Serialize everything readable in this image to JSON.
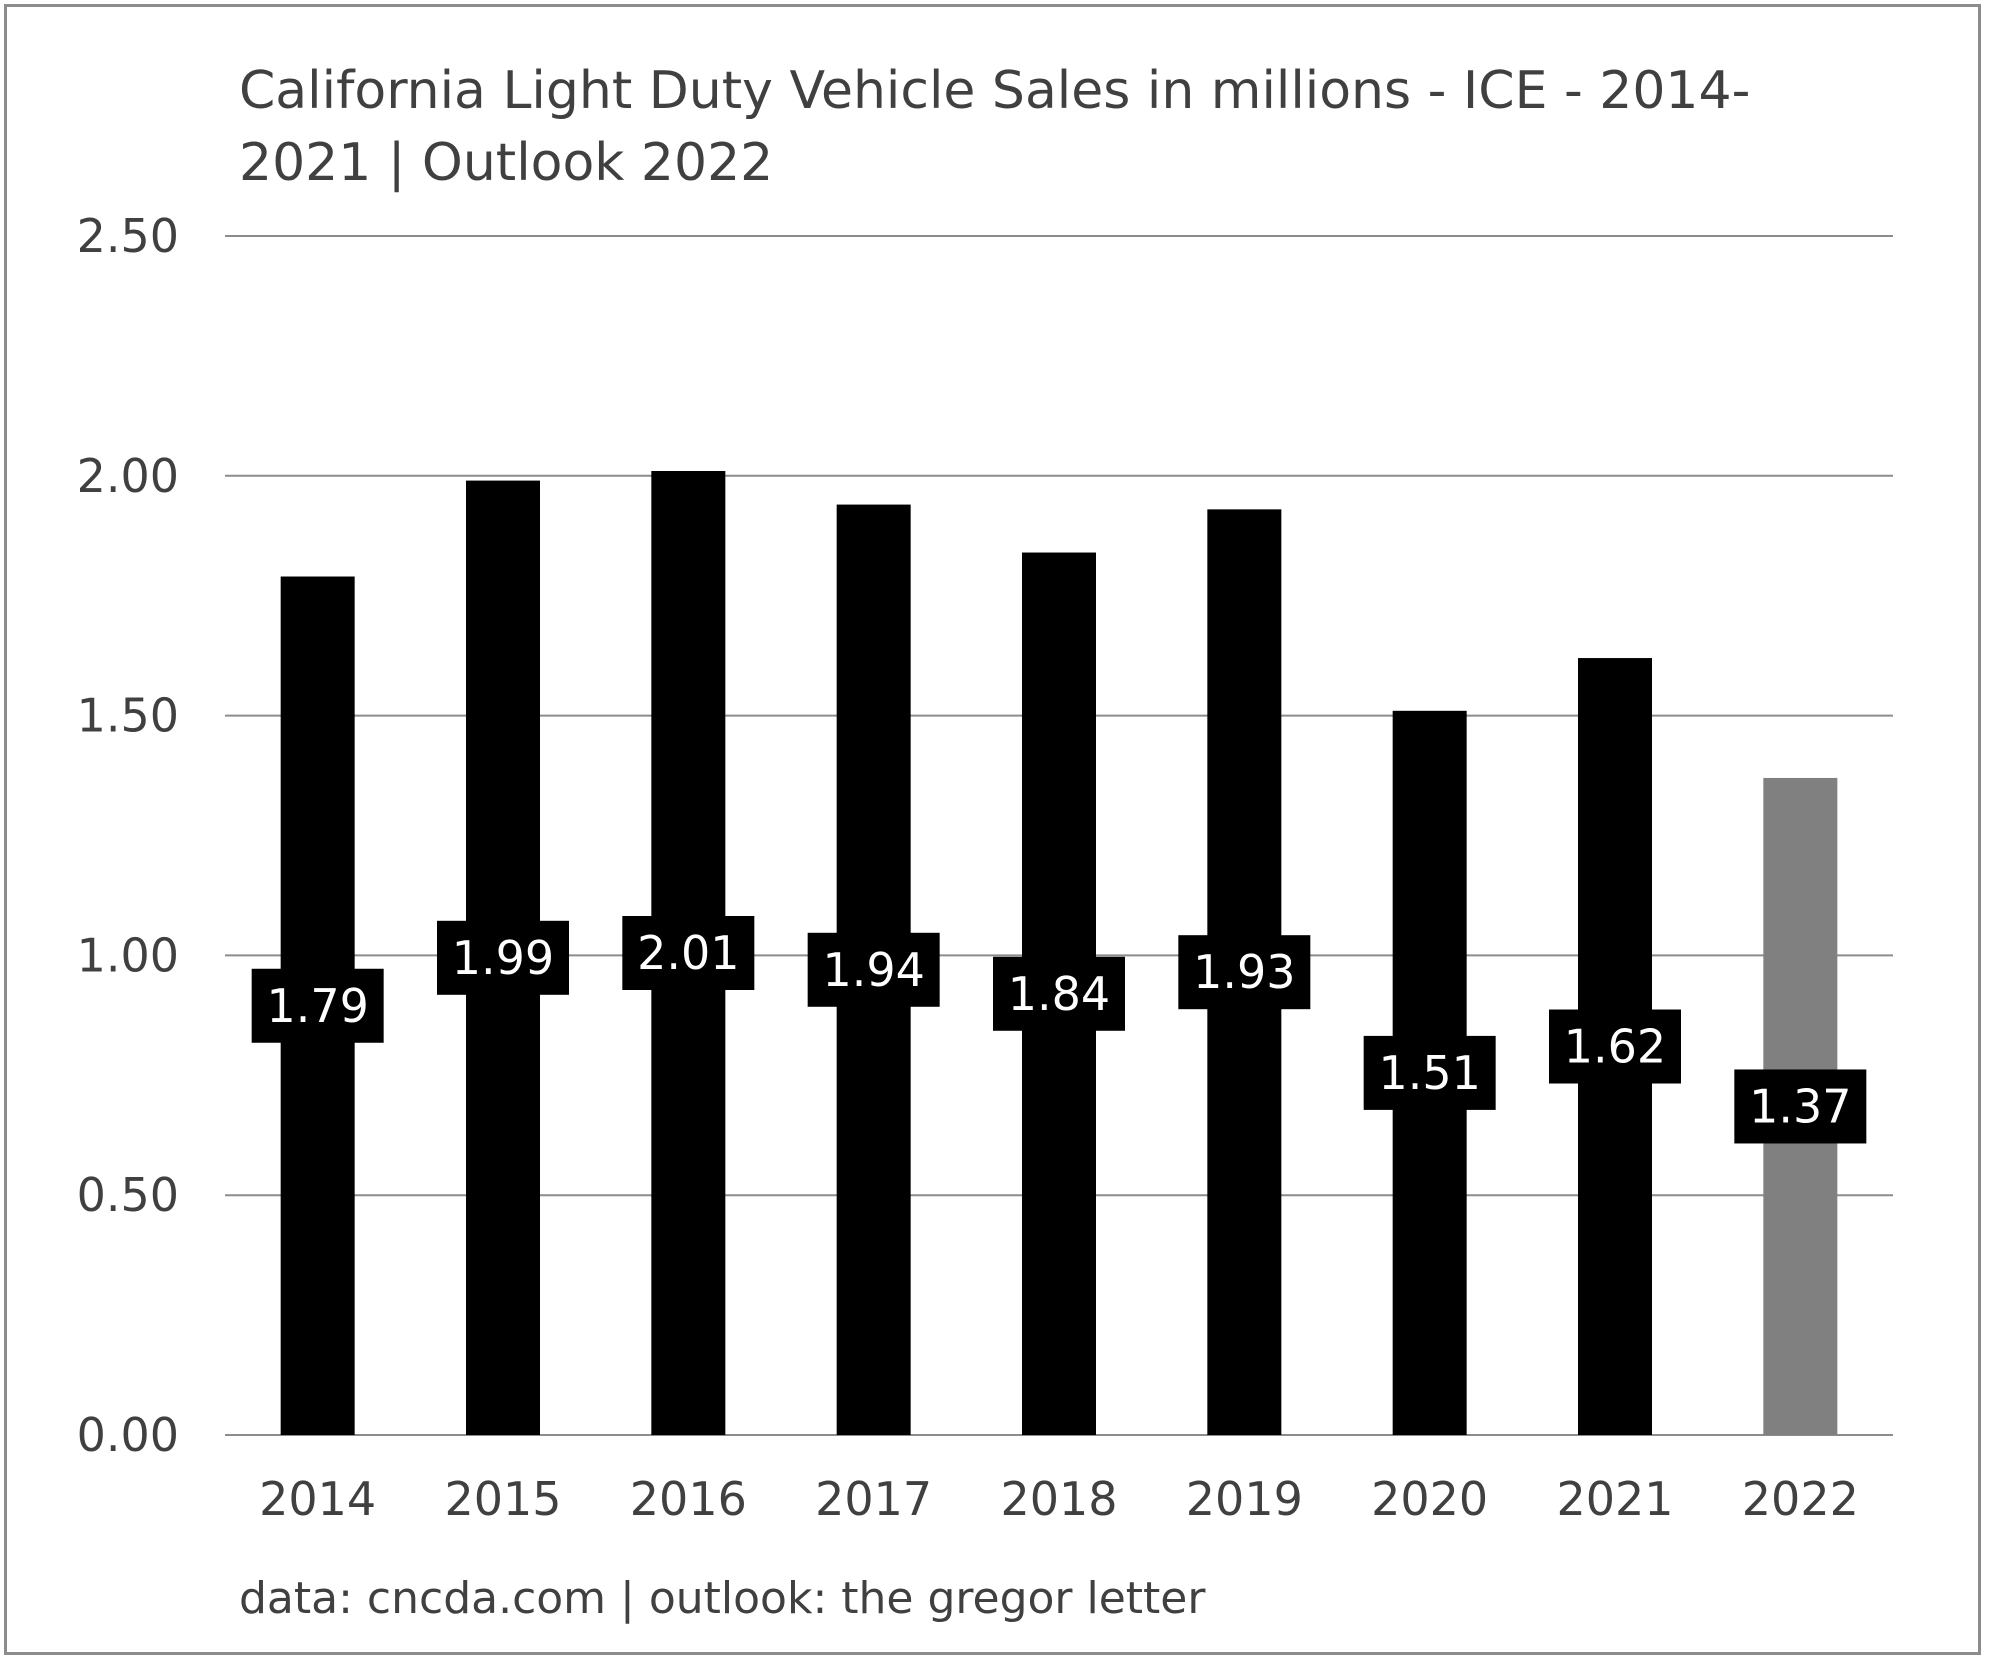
{
  "chart_data": {
    "type": "bar",
    "title": "California Light Duty Vehicle Sales in millions - ICE - 2014-2021 | Outlook 2022",
    "source_note": "data: cncda.com | outlook: the gregor letter",
    "categories": [
      "2014",
      "2015",
      "2016",
      "2017",
      "2018",
      "2019",
      "2020",
      "2021",
      "2022"
    ],
    "values": [
      1.79,
      1.99,
      2.01,
      1.94,
      1.84,
      1.93,
      1.51,
      1.62,
      1.37
    ],
    "data_labels": [
      "1.79",
      "1.99",
      "2.01",
      "1.94",
      "1.84",
      "1.93",
      "1.51",
      "1.62",
      "1.37"
    ],
    "bar_colors": [
      "#000000",
      "#000000",
      "#000000",
      "#000000",
      "#000000",
      "#000000",
      "#000000",
      "#000000",
      "#808080"
    ],
    "label_box_color": "#000000",
    "gridline_color": "#8c8c8c",
    "ylim": [
      0,
      2.5
    ],
    "yticks": [
      0,
      0.5,
      1.0,
      1.5,
      2.0,
      2.5
    ],
    "ytick_labels": [
      "0.00",
      "0.50",
      "1.00",
      "1.50",
      "2.00",
      "2.50"
    ],
    "grid": true,
    "legend": "none"
  }
}
